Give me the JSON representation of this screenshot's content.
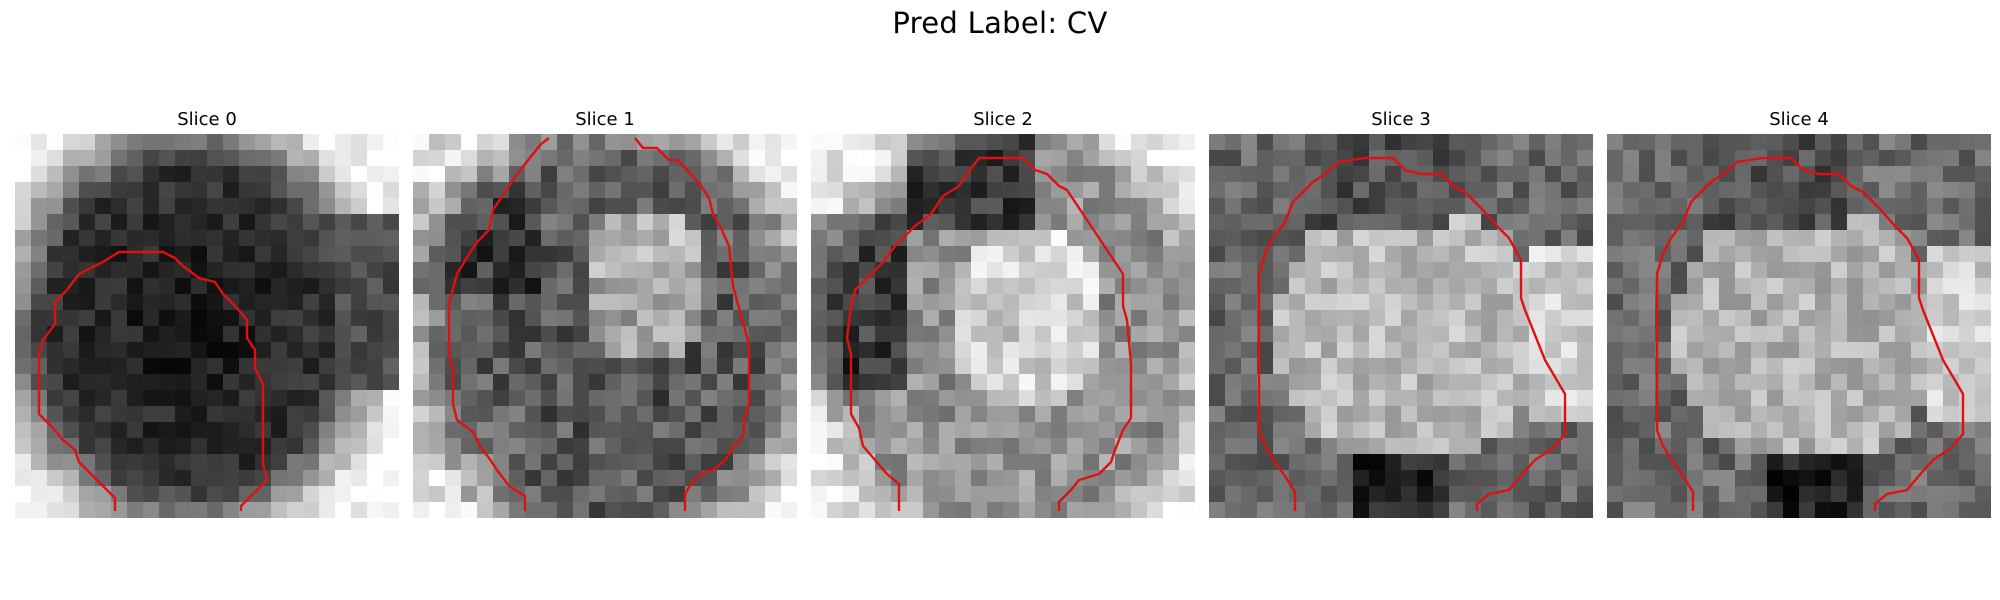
{
  "figure": {
    "title": "Pred Label: CV",
    "contour_color": "#e01010",
    "panels": [
      {
        "label": "Slice 0"
      },
      {
        "label": "Slice 1"
      },
      {
        "label": "Slice 2"
      },
      {
        "label": "Slice 3"
      },
      {
        "label": "Slice 4"
      }
    ]
  }
}
